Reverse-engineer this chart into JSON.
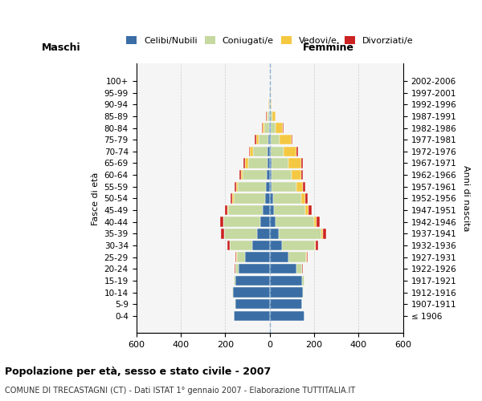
{
  "age_groups": [
    "100+",
    "95-99",
    "90-94",
    "85-89",
    "80-84",
    "75-79",
    "70-74",
    "65-69",
    "60-64",
    "55-59",
    "50-54",
    "45-49",
    "40-44",
    "35-39",
    "30-34",
    "25-29",
    "20-24",
    "15-19",
    "10-14",
    "5-9",
    "0-4"
  ],
  "birth_years": [
    "≤ 1906",
    "1907-1911",
    "1912-1916",
    "1917-1921",
    "1922-1926",
    "1927-1931",
    "1932-1936",
    "1937-1941",
    "1942-1946",
    "1947-1951",
    "1952-1956",
    "1957-1961",
    "1962-1966",
    "1967-1971",
    "1972-1976",
    "1977-1981",
    "1982-1986",
    "1987-1991",
    "1992-1996",
    "1997-2001",
    "2002-2006"
  ],
  "males": {
    "celibe": [
      0,
      1,
      1,
      2,
      3,
      5,
      8,
      10,
      12,
      18,
      22,
      30,
      42,
      55,
      80,
      110,
      140,
      155,
      165,
      155,
      160
    ],
    "coniugato": [
      0,
      1,
      3,
      8,
      22,
      45,
      68,
      88,
      108,
      125,
      140,
      155,
      165,
      148,
      100,
      38,
      15,
      5,
      2,
      1,
      0
    ],
    "vedovo": [
      0,
      0,
      2,
      5,
      8,
      12,
      12,
      12,
      8,
      6,
      5,
      4,
      3,
      2,
      1,
      1,
      0,
      0,
      0,
      0,
      0
    ],
    "divorziato": [
      0,
      0,
      0,
      1,
      2,
      4,
      6,
      7,
      8,
      9,
      10,
      12,
      13,
      14,
      10,
      5,
      2,
      1,
      0,
      0,
      0
    ]
  },
  "females": {
    "nubile": [
      0,
      1,
      1,
      2,
      3,
      4,
      5,
      7,
      8,
      10,
      14,
      18,
      28,
      40,
      55,
      85,
      120,
      145,
      150,
      145,
      155
    ],
    "coniugata": [
      0,
      1,
      3,
      10,
      25,
      42,
      58,
      78,
      92,
      112,
      128,
      142,
      172,
      192,
      148,
      78,
      25,
      10,
      3,
      1,
      0
    ],
    "vedova": [
      0,
      1,
      5,
      14,
      32,
      52,
      58,
      58,
      42,
      28,
      18,
      14,
      9,
      7,
      5,
      3,
      1,
      0,
      0,
      0,
      0
    ],
    "divorziata": [
      0,
      0,
      0,
      1,
      2,
      4,
      5,
      6,
      8,
      10,
      12,
      14,
      16,
      14,
      10,
      5,
      2,
      1,
      0,
      0,
      0
    ]
  },
  "colors": {
    "celibe": "#3a6ea5",
    "coniugato": "#c5d9a0",
    "vedovo": "#f5c842",
    "divorziato": "#cc2222"
  },
  "xlim": 600,
  "title": "Popolazione per età, sesso e stato civile - 2007",
  "subtitle": "COMUNE DI TRECASTAGNI (CT) - Dati ISTAT 1° gennaio 2007 - Elaborazione TUTTITALIA.IT",
  "ylabel_left": "Fasce di età",
  "ylabel_right": "Anni di nascita",
  "xlabel_left": "Maschi",
  "xlabel_right": "Femmine",
  "bg_color": "#f5f5f5",
  "grid_color": "#cccccc"
}
